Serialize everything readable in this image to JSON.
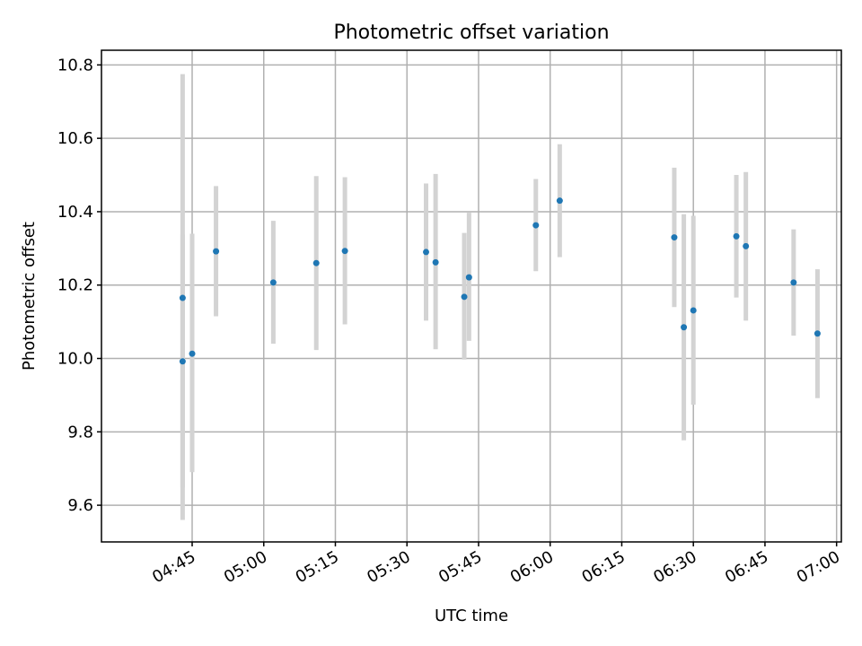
{
  "chart_data": {
    "type": "scatter",
    "title": "Photometric offset variation",
    "xlabel": "UTC time",
    "ylabel": "Photometric offset",
    "ylim": [
      9.5,
      10.84
    ],
    "xlim": [
      "04:26",
      "07:01"
    ],
    "yticks": [
      "9.6",
      "9.8",
      "10.0",
      "10.2",
      "10.4",
      "10.6",
      "10.8"
    ],
    "xticks": [
      "04:45",
      "05:00",
      "05:15",
      "05:30",
      "05:45",
      "06:00",
      "06:15",
      "06:30",
      "06:45",
      "07:00"
    ],
    "grid": true,
    "legend": "none",
    "colors": {
      "point": "#1f77b4",
      "errorbar": "#d3d3d3",
      "grid": "#b0b0b0"
    },
    "points": [
      {
        "x": "04:43",
        "y": 10.165,
        "lo": 9.56,
        "hi": 10.775
      },
      {
        "x": "04:43",
        "y": 9.992,
        "lo": 9.648,
        "hi": 10.338
      },
      {
        "x": "04:45",
        "y": 10.013,
        "lo": 9.69,
        "hi": 10.34
      },
      {
        "x": "04:50",
        "y": 10.292,
        "lo": 10.115,
        "hi": 10.47
      },
      {
        "x": "05:02",
        "y": 10.207,
        "lo": 10.04,
        "hi": 10.375
      },
      {
        "x": "05:11",
        "y": 10.26,
        "lo": 10.023,
        "hi": 10.497
      },
      {
        "x": "05:17",
        "y": 10.293,
        "lo": 10.093,
        "hi": 10.494
      },
      {
        "x": "05:34",
        "y": 10.29,
        "lo": 10.103,
        "hi": 10.477
      },
      {
        "x": "05:36",
        "y": 10.262,
        "lo": 10.025,
        "hi": 10.503
      },
      {
        "x": "05:42",
        "y": 10.168,
        "lo": 9.997,
        "hi": 10.342
      },
      {
        "x": "05:43",
        "y": 10.221,
        "lo": 10.048,
        "hi": 10.397
      },
      {
        "x": "05:57",
        "y": 10.363,
        "lo": 10.238,
        "hi": 10.489
      },
      {
        "x": "06:02",
        "y": 10.43,
        "lo": 10.276,
        "hi": 10.584
      },
      {
        "x": "06:26",
        "y": 10.33,
        "lo": 10.14,
        "hi": 10.52
      },
      {
        "x": "06:28",
        "y": 10.085,
        "lo": 9.777,
        "hi": 10.393
      },
      {
        "x": "06:30",
        "y": 10.131,
        "lo": 9.874,
        "hi": 10.389
      },
      {
        "x": "06:39",
        "y": 10.333,
        "lo": 10.166,
        "hi": 10.5
      },
      {
        "x": "06:41",
        "y": 10.306,
        "lo": 10.103,
        "hi": 10.508
      },
      {
        "x": "06:51",
        "y": 10.207,
        "lo": 10.062,
        "hi": 10.352
      },
      {
        "x": "06:56",
        "y": 10.068,
        "lo": 9.892,
        "hi": 10.243
      }
    ]
  }
}
